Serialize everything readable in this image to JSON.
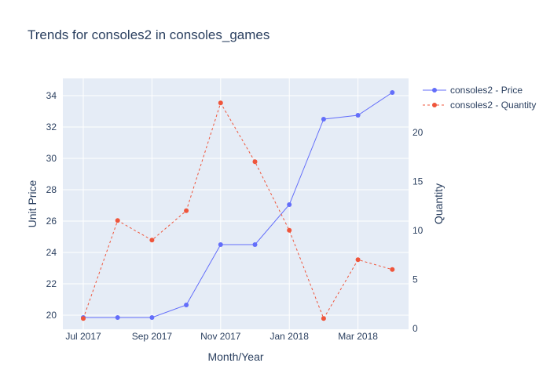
{
  "chart_data": {
    "type": "line",
    "title": "Trends for consoles2 in consoles_games",
    "xlabel": "Month/Year",
    "ylabel_left": "Unit Price",
    "ylabel_right": "Quantity",
    "x": [
      "2017-07",
      "2017-08",
      "2017-09",
      "2017-10",
      "2017-11",
      "2017-12",
      "2018-01",
      "2018-02",
      "2018-03",
      "2018-04"
    ],
    "x_tick_labels": [
      "Jul 2017",
      "Sep 2017",
      "Nov 2017",
      "Jan 2018",
      "Mar 2018"
    ],
    "y_left_ticks": [
      20,
      22,
      24,
      26,
      28,
      30,
      32,
      34
    ],
    "y_right_ticks": [
      0,
      5,
      10,
      15,
      20
    ],
    "ylim_left": [
      19.1,
      35.1
    ],
    "ylim_right": [
      -0.1,
      25.5
    ],
    "grid": true,
    "legend_position": "top-right",
    "series": [
      {
        "name": "consoles2 - Price",
        "axis": "left",
        "color": "#636efa",
        "dash": "solid",
        "values": [
          19.85,
          19.85,
          19.85,
          20.65,
          24.5,
          24.5,
          27.05,
          32.5,
          32.75,
          34.2
        ]
      },
      {
        "name": "consoles2 - Quantity",
        "axis": "right",
        "color": "#ef553b",
        "dash": "dashed",
        "values": [
          1,
          11,
          9,
          12,
          23,
          17,
          10,
          1,
          7,
          6
        ]
      }
    ]
  }
}
